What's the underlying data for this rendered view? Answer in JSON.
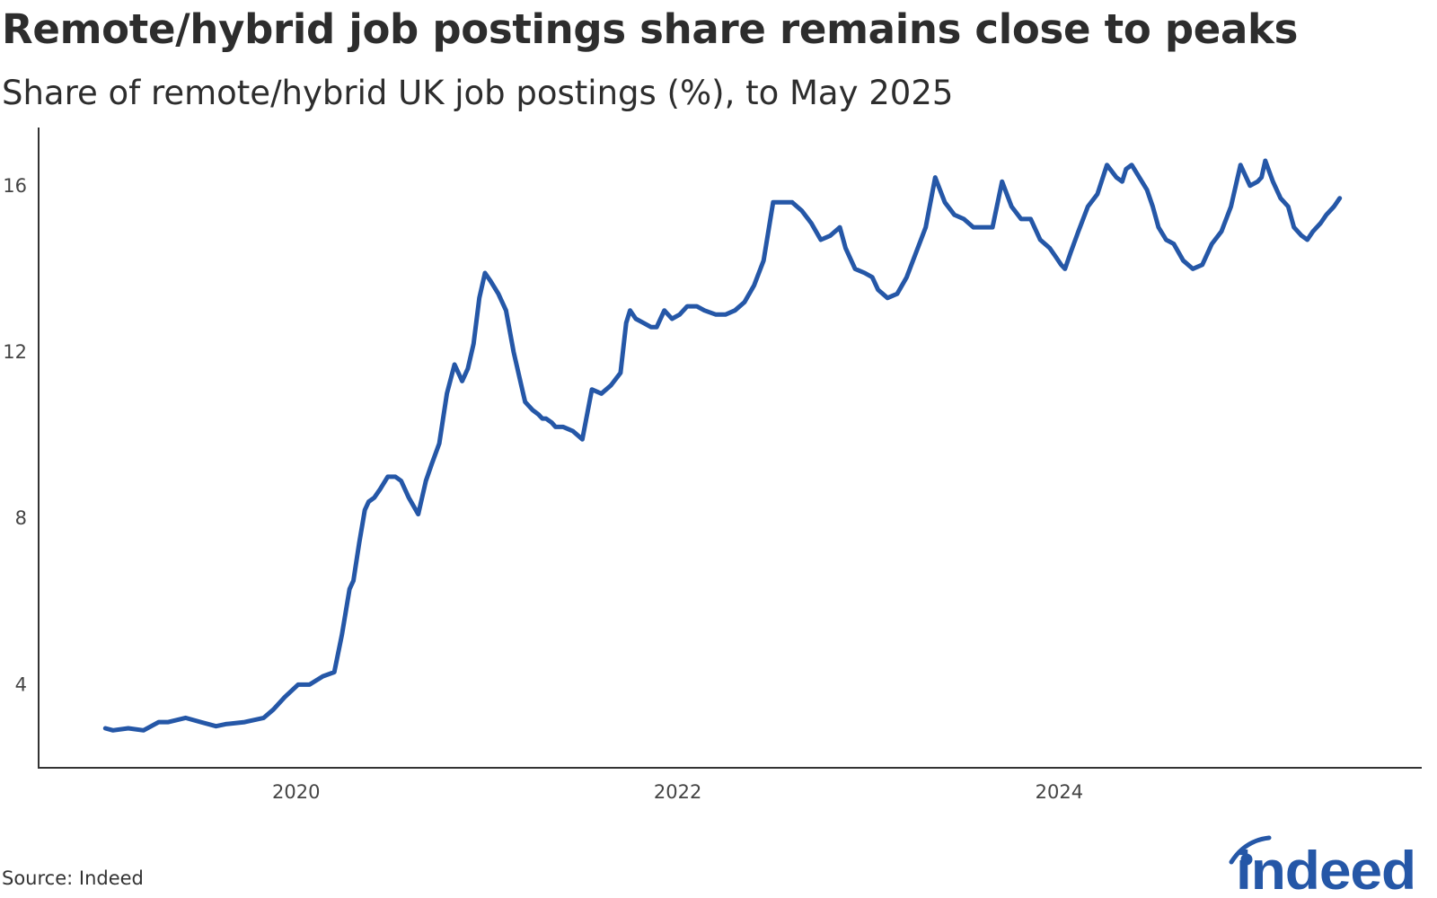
{
  "title": "Remote/hybrid job postings share remains close to peaks",
  "subtitle": "Share of remote/hybrid UK job postings (%), to May 2025",
  "source": "Source: Indeed",
  "logo": {
    "text": "indeed",
    "color": "#2557a7"
  },
  "chart_data": {
    "type": "line",
    "title": "Remote/hybrid job postings share remains close to peaks",
    "subtitle": "Share of remote/hybrid UK job postings (%), to May 2025",
    "xlabel": "",
    "ylabel": "",
    "x_ticks": [
      {
        "value": 2020,
        "label": "2020"
      },
      {
        "value": 2022,
        "label": "2022"
      },
      {
        "value": 2024,
        "label": "2024"
      }
    ],
    "y_ticks": [
      {
        "value": 4,
        "label": "4"
      },
      {
        "value": 8,
        "label": "8"
      },
      {
        "value": 12,
        "label": "12"
      },
      {
        "value": 16,
        "label": "16"
      }
    ],
    "xlim": [
      2018.65,
      2025.9
    ],
    "ylim": [
      2.0,
      17.4
    ],
    "grid": false,
    "legend": "none",
    "line_color": "#2557a7",
    "series": [
      {
        "x": [
          2019.0,
          2019.04,
          2019.12,
          2019.2,
          2019.28,
          2019.33,
          2019.42,
          2019.5,
          2019.58,
          2019.63,
          2019.73,
          2019.83,
          2019.88,
          2019.94,
          2020.01,
          2020.07,
          2020.14,
          2020.2,
          2020.24,
          2020.28,
          2020.3,
          2020.33,
          2020.36,
          2020.38,
          2020.41,
          2020.44,
          2020.48,
          2020.52,
          2020.55,
          2020.59,
          2020.64,
          2020.68,
          2020.71,
          2020.75,
          2020.79,
          2020.83,
          2020.87,
          2020.9,
          2020.93,
          2020.96,
          2020.99,
          2021.02,
          2021.06,
          2021.1,
          2021.14,
          2021.18,
          2021.2,
          2021.24,
          2021.27,
          2021.29,
          2021.31,
          2021.34,
          2021.36,
          2021.4,
          2021.45,
          2021.5,
          2021.55,
          2021.6,
          2021.65,
          2021.7,
          2021.73,
          2021.75,
          2021.78,
          2021.82,
          2021.86,
          2021.89,
          2021.93,
          2021.97,
          2022.01,
          2022.05,
          2022.1,
          2022.14,
          2022.2,
          2022.25,
          2022.3,
          2022.35,
          2022.4,
          2022.45,
          2022.5,
          2022.55,
          2022.6,
          2022.65,
          2022.7,
          2022.75,
          2022.8,
          2022.85,
          2022.88,
          2022.93,
          2022.98,
          2023.02,
          2023.05,
          2023.1,
          2023.15,
          2023.2,
          2023.25,
          2023.3,
          2023.35,
          2023.4,
          2023.45,
          2023.5,
          2023.55,
          2023.6,
          2023.65,
          2023.7,
          2023.75,
          2023.8,
          2023.85,
          2023.9,
          2023.95,
          2023.98,
          2024.01,
          2024.03,
          2024.06,
          2024.1,
          2024.15,
          2024.2,
          2024.25,
          2024.3,
          2024.33,
          2024.35,
          2024.38,
          2024.42,
          2024.46,
          2024.49,
          2024.52,
          2024.56,
          2024.6,
          2024.65,
          2024.7,
          2024.75,
          2024.8,
          2024.85,
          2024.9,
          2024.95,
          2025.0,
          2025.04,
          2025.06,
          2025.08,
          2025.12,
          2025.16,
          2025.2,
          2025.23,
          2025.27,
          2025.3,
          2025.33,
          2025.37,
          2025.4,
          2025.44,
          2025.47
        ],
        "y": [
          2.95,
          2.9,
          2.95,
          2.9,
          3.1,
          3.1,
          3.2,
          3.1,
          3.0,
          3.05,
          3.1,
          3.2,
          3.4,
          3.7,
          4.0,
          4.0,
          4.2,
          4.3,
          5.2,
          6.3,
          6.5,
          7.4,
          8.2,
          8.4,
          8.5,
          8.7,
          9.0,
          9.0,
          8.9,
          8.5,
          8.1,
          8.9,
          9.3,
          9.8,
          11.0,
          11.7,
          11.3,
          11.6,
          12.2,
          13.3,
          13.9,
          13.7,
          13.4,
          13.0,
          12.0,
          11.2,
          10.8,
          10.6,
          10.5,
          10.4,
          10.4,
          10.3,
          10.2,
          10.2,
          10.1,
          9.9,
          11.1,
          11.0,
          11.2,
          11.5,
          12.7,
          13.0,
          12.8,
          12.7,
          12.6,
          12.6,
          13.0,
          12.8,
          12.9,
          13.1,
          13.1,
          13.0,
          12.9,
          12.9,
          13.0,
          13.2,
          13.6,
          14.2,
          15.6,
          15.6,
          15.6,
          15.4,
          15.1,
          14.7,
          14.8,
          15.0,
          14.5,
          14.0,
          13.9,
          13.8,
          13.5,
          13.3,
          13.4,
          13.8,
          14.4,
          15.0,
          16.2,
          15.6,
          15.3,
          15.2,
          15.0,
          15.0,
          15.0,
          16.1,
          15.5,
          15.2,
          15.2,
          14.7,
          14.5,
          14.3,
          14.1,
          14.0,
          14.4,
          14.9,
          15.5,
          15.8,
          16.5,
          16.2,
          16.1,
          16.4,
          16.5,
          16.2,
          15.9,
          15.5,
          15.0,
          14.7,
          14.6,
          14.2,
          14.0,
          14.1,
          14.6,
          14.9,
          15.5,
          16.5,
          16.0,
          16.1,
          16.2,
          16.6,
          16.1,
          15.7,
          15.5,
          15.0,
          14.8,
          14.7,
          14.9,
          15.1,
          15.3,
          15.5,
          15.7
        ]
      }
    ]
  }
}
